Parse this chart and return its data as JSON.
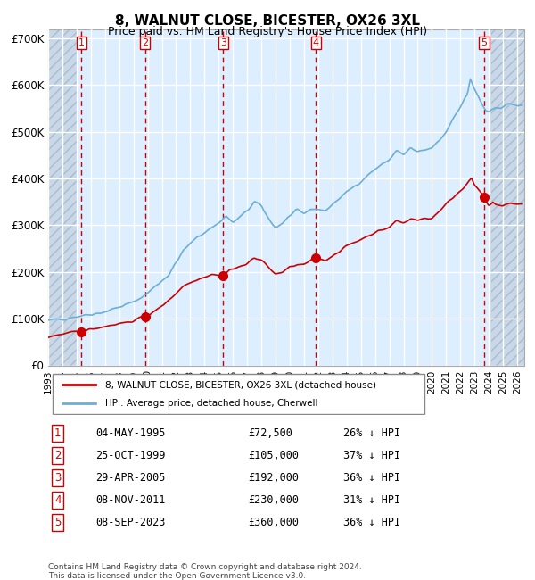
{
  "title": "8, WALNUT CLOSE, BICESTER, OX26 3XL",
  "subtitle": "Price paid vs. HM Land Registry's House Price Index (HPI)",
  "ylabel": "",
  "xlim": [
    1993.0,
    2026.5
  ],
  "ylim": [
    0,
    720000
  ],
  "yticks": [
    0,
    100000,
    200000,
    300000,
    400000,
    500000,
    600000,
    700000
  ],
  "ytick_labels": [
    "£0",
    "£100K",
    "£200K",
    "£300K",
    "£400K",
    "£500K",
    "£600K",
    "£700K"
  ],
  "xtick_years": [
    1993,
    1994,
    1995,
    1996,
    1997,
    1998,
    1999,
    2000,
    2001,
    2002,
    2003,
    2004,
    2005,
    2006,
    2007,
    2008,
    2009,
    2010,
    2011,
    2012,
    2013,
    2014,
    2015,
    2016,
    2017,
    2018,
    2019,
    2020,
    2021,
    2022,
    2023,
    2024,
    2025,
    2026
  ],
  "sale_dates": [
    1995.34,
    1999.81,
    2005.32,
    2011.84,
    2023.68
  ],
  "sale_prices": [
    72500,
    105000,
    192000,
    230000,
    360000
  ],
  "sale_labels": [
    "1",
    "2",
    "3",
    "4",
    "5"
  ],
  "sale_date_strs": [
    "04-MAY-1995",
    "25-OCT-1999",
    "29-APR-2005",
    "08-NOV-2011",
    "08-SEP-2023"
  ],
  "sale_price_strs": [
    "£72,500",
    "£105,000",
    "£192,000",
    "£230,000",
    "£360,000"
  ],
  "sale_pct_strs": [
    "26% ↓ HPI",
    "37% ↓ HPI",
    "36% ↓ HPI",
    "31% ↓ HPI",
    "36% ↓ HPI"
  ],
  "hpi_color": "#6baed6",
  "price_color": "#cc0000",
  "bg_color": "#ddeeff",
  "hatch_color": "#bbccdd",
  "grid_color": "#ffffff",
  "dashed_line_color": "#cc0000",
  "legend_label_price": "8, WALNUT CLOSE, BICESTER, OX26 3XL (detached house)",
  "legend_label_hpi": "HPI: Average price, detached house, Cherwell",
  "footer": "Contains HM Land Registry data © Crown copyright and database right 2024.\nThis data is licensed under the Open Government Licence v3.0.",
  "title_fontsize": 11,
  "subtitle_fontsize": 9.5
}
